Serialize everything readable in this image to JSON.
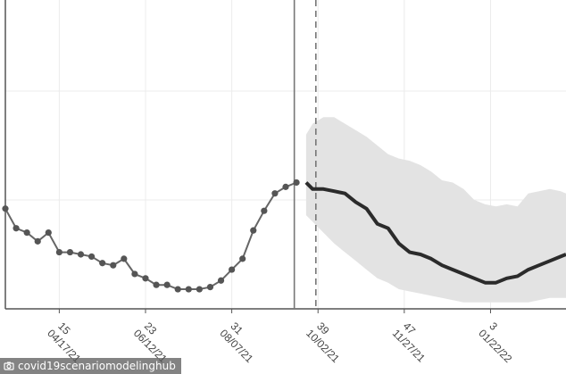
{
  "watermark": {
    "text": "covid19scenariomodelinghub",
    "icon": "camera-icon"
  },
  "colors": {
    "observed": "#666666",
    "projection": "#2b2b2b",
    "band": "#e3e3e3",
    "grid": "#ececec",
    "axis": "#555555",
    "marker": "#555555"
  },
  "chart_data": {
    "type": "line",
    "title": "",
    "xlabel": "",
    "ylabel": "",
    "grid": true,
    "xlim": [
      10,
      62
    ],
    "ylim": [
      0,
      1
    ],
    "x_ticks": [
      {
        "x": 15,
        "week": "15",
        "date": "04/17/21"
      },
      {
        "x": 23,
        "week": "23",
        "date": "06/12/21"
      },
      {
        "x": 31,
        "week": "31",
        "date": "08/07/21"
      },
      {
        "x": 39,
        "week": "39",
        "date": "10/02/21"
      },
      {
        "x": 47,
        "week": "47",
        "date": "11/27/21"
      },
      {
        "x": 55,
        "week": "3",
        "date": "01/22/22"
      }
    ],
    "y_gridlines": [
      0.5,
      1.0
    ],
    "reference_lines": {
      "solid_x": 36.8,
      "dashed_x": 38.8
    },
    "series": [
      {
        "role": "observed",
        "x": [
          10,
          11,
          12,
          13,
          14,
          15,
          16,
          17,
          18,
          19,
          20,
          21,
          22,
          23,
          24,
          25,
          26,
          27,
          28,
          29,
          30,
          31,
          32,
          33,
          34,
          35,
          36,
          37
        ],
        "y": [
          0.46,
          0.37,
          0.35,
          0.31,
          0.35,
          0.26,
          0.26,
          0.25,
          0.24,
          0.21,
          0.2,
          0.23,
          0.16,
          0.14,
          0.11,
          0.11,
          0.09,
          0.09,
          0.09,
          0.1,
          0.13,
          0.18,
          0.23,
          0.36,
          0.45,
          0.53,
          0.56,
          0.58
        ]
      },
      {
        "role": "projection",
        "x": [
          37.9,
          38.5,
          39.5,
          40.5,
          41.5,
          42.5,
          43.5,
          44.5,
          45.5,
          46.5,
          47.5,
          48.5,
          49.5,
          50.5,
          51.5,
          52.5,
          53.5,
          54.5,
          55.5,
          56.5,
          57.5,
          58.5,
          59.5,
          60.5,
          61.5,
          62
        ],
        "y": [
          0.58,
          0.55,
          0.55,
          0.54,
          0.53,
          0.49,
          0.46,
          0.39,
          0.37,
          0.3,
          0.26,
          0.25,
          0.23,
          0.2,
          0.18,
          0.16,
          0.14,
          0.12,
          0.12,
          0.14,
          0.15,
          0.18,
          0.2,
          0.22,
          0.24,
          0.25
        ],
        "band_upper": [
          0.8,
          0.85,
          0.88,
          0.88,
          0.85,
          0.82,
          0.79,
          0.75,
          0.71,
          0.69,
          0.68,
          0.66,
          0.63,
          0.59,
          0.58,
          0.55,
          0.5,
          0.48,
          0.47,
          0.48,
          0.47,
          0.53,
          0.54,
          0.55,
          0.54,
          0.53
        ],
        "band_lower": [
          0.43,
          0.4,
          0.35,
          0.3,
          0.26,
          0.22,
          0.18,
          0.14,
          0.12,
          0.09,
          0.08,
          0.07,
          0.06,
          0.05,
          0.04,
          0.03,
          0.03,
          0.03,
          0.03,
          0.03,
          0.03,
          0.03,
          0.04,
          0.05,
          0.05,
          0.05
        ]
      }
    ]
  }
}
